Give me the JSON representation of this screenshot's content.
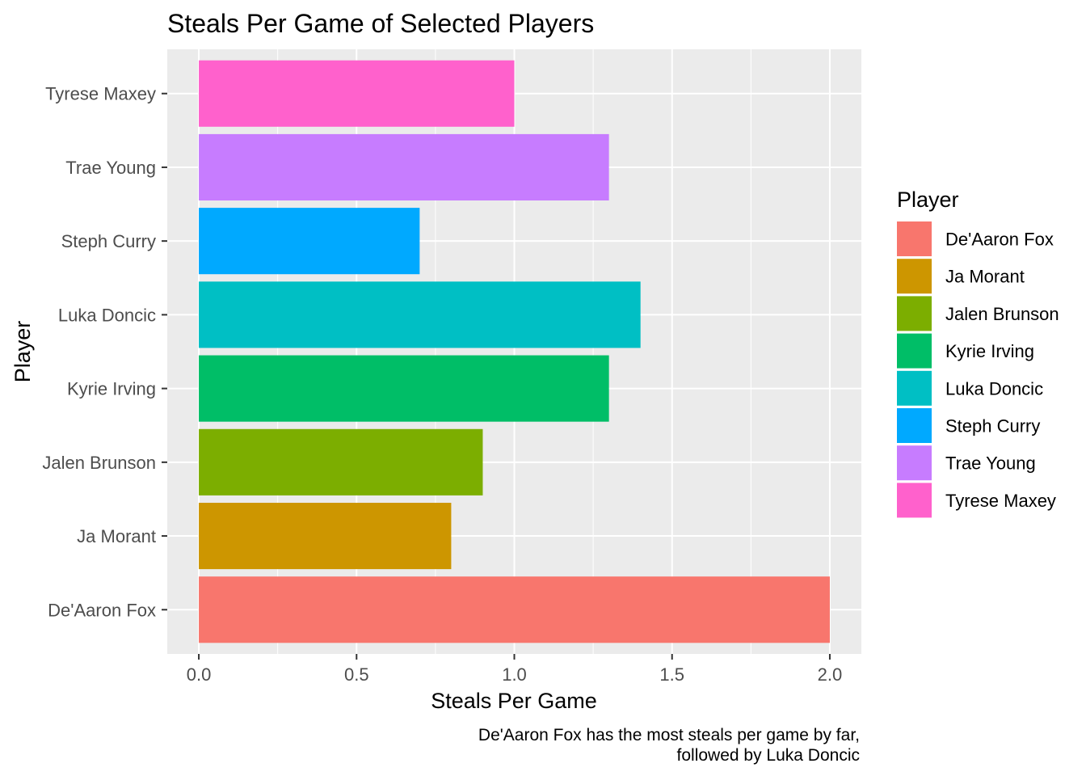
{
  "chart_data": {
    "type": "bar",
    "orientation": "horizontal",
    "title": "Steals Per Game of Selected Players",
    "xlabel": "Steals Per Game",
    "ylabel": "Player",
    "categories": [
      "De'Aaron Fox",
      "Ja Morant",
      "Jalen Brunson",
      "Kyrie Irving",
      "Luka Doncic",
      "Steph Curry",
      "Trae Young",
      "Tyrese Maxey"
    ],
    "values": [
      2.0,
      0.8,
      0.9,
      1.3,
      1.4,
      0.7,
      1.3,
      1.0
    ],
    "colors": [
      "#F8766D",
      "#CD9600",
      "#7CAE00",
      "#00BE67",
      "#00BFC4",
      "#00A9FF",
      "#C77CFF",
      "#FF61CC"
    ],
    "xlim": [
      -0.1,
      2.1
    ],
    "x_ticks": [
      "0.0",
      "0.5",
      "1.0",
      "1.5",
      "2.0"
    ],
    "x_tick_values": [
      0,
      0.5,
      1.0,
      1.5,
      2.0
    ],
    "grid": true,
    "panel_background": "#EBEBEB",
    "legend": {
      "title": "Player",
      "placement": "right",
      "entries": [
        "De'Aaron Fox",
        "Ja Morant",
        "Jalen Brunson",
        "Kyrie Irving",
        "Luka Doncic",
        "Steph Curry",
        "Trae Young",
        "Tyrese Maxey"
      ]
    },
    "caption_lines": [
      "De'Aaron Fox has the most steals per game by far,",
      "followed by Luka Doncic"
    ]
  }
}
